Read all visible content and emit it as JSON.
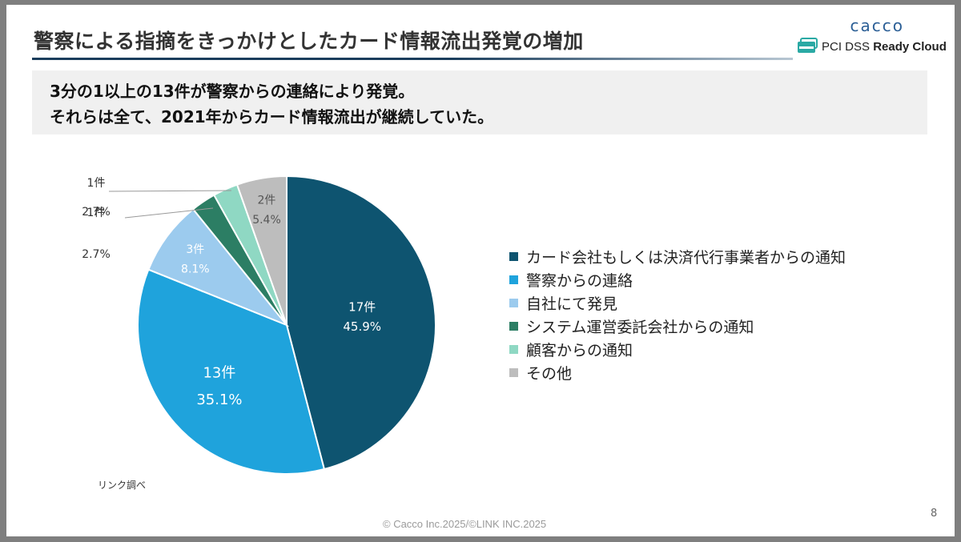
{
  "header": {
    "title": "警察による指摘をきっかけとしたカード情報流出発覚の増加",
    "logo_word": "cacco",
    "logo_text_prefix": "PCI DSS ",
    "logo_text_bold": "Ready Cloud"
  },
  "summary": {
    "line1": "3分の1以上の13件が警察からの連絡により発覚。",
    "line2": "それらは全て、2021年からカード情報流出が継続していた。"
  },
  "chart_data": {
    "type": "pie",
    "title": "",
    "start_angle_deg": 0,
    "direction": "clockwise",
    "slices": [
      {
        "label": "カード会社もしくは決済代行事業者からの通知",
        "count": 17,
        "count_label": "17件",
        "percent_label": "45.9%",
        "color": "#0e5470",
        "label_color": "#ffffff"
      },
      {
        "label": "警察からの連絡",
        "count": 13,
        "count_label": "13件",
        "percent_label": "35.1%",
        "color": "#1fa3dc",
        "label_color": "#ffffff"
      },
      {
        "label": "自社にて発見",
        "count": 3,
        "count_label": "3件",
        "percent_label": "8.1%",
        "color": "#9ccbee",
        "label_color": "#ffffff"
      },
      {
        "label": "システム運営委託会社からの通知",
        "count": 1,
        "count_label": "1件",
        "percent_label": "2.7%",
        "color": "#2c7e64",
        "label_color": "#333333"
      },
      {
        "label": "顧客からの通知",
        "count": 1,
        "count_label": "1件",
        "percent_label": "2.7%",
        "color": "#8fd8c3",
        "label_color": "#333333"
      },
      {
        "label": "その他",
        "count": 2,
        "count_label": "2件",
        "percent_label": "5.4%",
        "color": "#bdbdbd",
        "label_color": "#555555"
      }
    ]
  },
  "footer": {
    "source": "リンク調べ",
    "copyright": "© Cacco Inc.2025/©LINK INC.2025",
    "page_number": "8"
  }
}
